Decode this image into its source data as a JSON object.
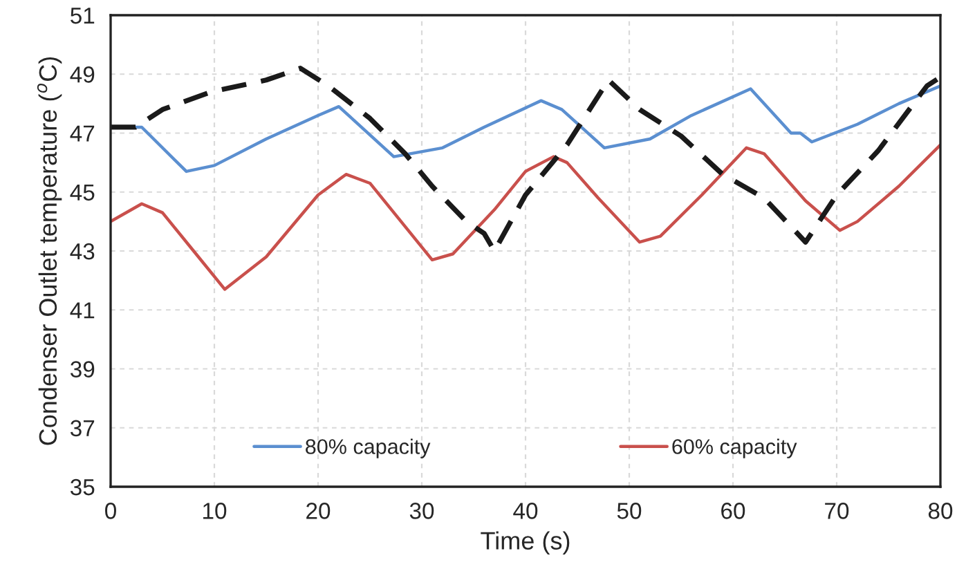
{
  "chart_data": {
    "type": "line",
    "xlabel": "Time (s)",
    "ylabel": "Condenser Outlet temperature ($^{o}$C)",
    "xlim": [
      0,
      80
    ],
    "xticks": [
      0,
      10,
      20,
      30,
      40,
      50,
      60,
      70,
      80
    ],
    "ylim": [
      35,
      51
    ],
    "yticks": [
      35,
      37,
      39,
      41,
      43,
      45,
      47,
      49,
      51
    ],
    "grid": true,
    "legend": "bottom",
    "series": [
      {
        "name": "80% capacity",
        "color": "#5b8fd0",
        "line_style": "solid",
        "x": [
          0,
          3,
          7.3,
          10,
          15,
          20,
          22,
          27.3,
          32,
          36,
          41.5,
          43.5,
          47.6,
          52,
          56,
          61.7,
          65.6,
          66.5,
          67.6,
          72,
          76,
          80
        ],
        "values": [
          47.2,
          47.2,
          45.7,
          45.9,
          46.8,
          47.6,
          47.9,
          46.2,
          46.5,
          47.2,
          48.1,
          47.8,
          46.5,
          46.8,
          47.6,
          48.5,
          47.0,
          47.0,
          46.7,
          47.3,
          48.0,
          48.6
        ]
      },
      {
        "name": "60% capacity",
        "color": "#c9504c",
        "line_style": "solid",
        "x": [
          0,
          3,
          5,
          8,
          11,
          15,
          20,
          22.7,
          25,
          28,
          31,
          33,
          37,
          40,
          42.7,
          44,
          47,
          51,
          53,
          57,
          61.3,
          63,
          67,
          70.3,
          72,
          76,
          80
        ],
        "values": [
          44.0,
          44.6,
          44.3,
          43.0,
          41.7,
          42.8,
          44.9,
          45.6,
          45.3,
          44.0,
          42.7,
          42.9,
          44.4,
          45.7,
          46.2,
          46.0,
          44.8,
          43.3,
          43.5,
          44.9,
          46.5,
          46.3,
          44.7,
          43.7,
          44.0,
          45.2,
          46.6
        ]
      },
      {
        "color": "#1a1a1a",
        "line_style": "dashed",
        "x": [
          0,
          2.4,
          5,
          9.7,
          15,
          18.3,
          21,
          25,
          28.4,
          31,
          34.3,
          36,
          37,
          40,
          44,
          48,
          51,
          55,
          59,
          63,
          67,
          70,
          74,
          78.7,
          80
        ],
        "values": [
          47.2,
          47.2,
          47.8,
          48.4,
          48.8,
          49.2,
          48.6,
          47.5,
          46.3,
          45.2,
          44.0,
          43.6,
          43.0,
          44.9,
          46.6,
          48.8,
          47.8,
          46.9,
          45.6,
          44.8,
          43.3,
          44.9,
          46.4,
          48.6,
          48.9
        ]
      }
    ]
  }
}
